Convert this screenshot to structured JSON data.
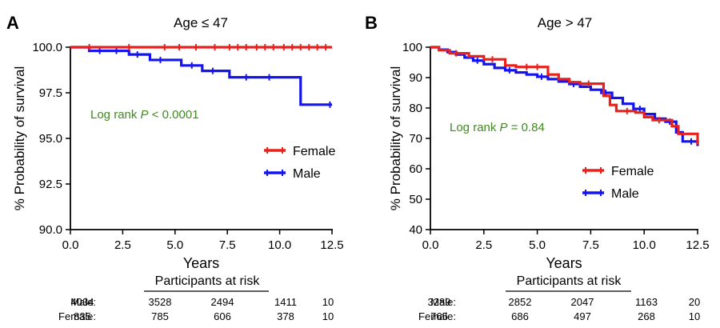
{
  "chart_data": [
    {
      "type": "line",
      "panel_label": "A",
      "title": "Age ≤ 47",
      "xlabel": "Years",
      "ylabel": "% Probability of survival",
      "xlim": [
        0,
        12.5
      ],
      "ylim": [
        90,
        100
      ],
      "xticks": [
        0,
        2.5,
        5,
        7.5,
        10,
        12.5
      ],
      "xtick_labels": [
        "0.0",
        "2.5",
        "5.0",
        "7.5",
        "10.0",
        "12.5"
      ],
      "yticks": [
        90,
        92.5,
        95,
        97.5,
        100
      ],
      "ytick_labels": [
        "90.0",
        "92.5",
        "95.0",
        "97.5",
        "100.0"
      ],
      "annotation": {
        "prefix": "Log rank ",
        "italic": "P",
        "suffix": " < 0.0001"
      },
      "legend_position": "middle-right",
      "series": [
        {
          "name": "Female",
          "color": "#e8211d",
          "x": [
            0,
            0.9,
            12.5
          ],
          "y": [
            100,
            100,
            100
          ],
          "censor_x": [
            0.9,
            2.8,
            4.5,
            5.2,
            6.0,
            6.9,
            7.6,
            8.0,
            8.4,
            8.9,
            9.3,
            9.7,
            10.2,
            10.6,
            11.0,
            11.4,
            11.8,
            12.2
          ]
        },
        {
          "name": "Male",
          "color": "#1414f0",
          "x": [
            0,
            0.9,
            2.8,
            3.8,
            5.3,
            6.3,
            7.6,
            11.0,
            12.5
          ],
          "y": [
            100,
            99.8,
            99.6,
            99.3,
            99.0,
            98.7,
            98.35,
            96.85,
            96.85
          ],
          "censor_x": [
            1.4,
            2.2,
            3.2,
            4.3,
            5.8,
            6.8,
            8.4,
            9.5,
            12.4
          ]
        }
      ],
      "risk_table": {
        "header": "Participants at risk",
        "rows": [
          {
            "label": "Male:",
            "values": [
              "4034",
              "3528",
              "2494",
              "1411",
              "10"
            ]
          },
          {
            "label": "Female:",
            "values": [
              "835",
              "785",
              "606",
              "378",
              "10"
            ]
          }
        ],
        "x": [
          0,
          3,
          6,
          9,
          12.5
        ]
      }
    },
    {
      "type": "line",
      "panel_label": "B",
      "title": "Age > 47",
      "xlabel": "Years",
      "ylabel": "% Probability of survival",
      "xlim": [
        0,
        12.5
      ],
      "ylim": [
        40,
        100
      ],
      "xticks": [
        0,
        2.5,
        5,
        7.5,
        10,
        12.5
      ],
      "xtick_labels": [
        "0.0",
        "2.5",
        "5.0",
        "7.5",
        "10.0",
        "12.5"
      ],
      "yticks": [
        40,
        50,
        60,
        70,
        80,
        90,
        100
      ],
      "ytick_labels": [
        "40",
        "50",
        "60",
        "70",
        "80",
        "90",
        "100"
      ],
      "annotation": {
        "prefix": "Log rank ",
        "italic": "P",
        "suffix": " = 0.84"
      },
      "legend_position": "lower-right",
      "series": [
        {
          "name": "Female",
          "color": "#e8211d",
          "x": [
            0,
            0.4,
            0.9,
            1.8,
            2.5,
            3.5,
            4.0,
            5.5,
            6.0,
            6.5,
            7.0,
            8.1,
            8.4,
            8.7,
            9.6,
            10.0,
            10.4,
            11.3,
            11.6,
            11.9,
            12.5
          ],
          "y": [
            100,
            99,
            98,
            97,
            96,
            94,
            93.5,
            91,
            89.5,
            88.5,
            88,
            84,
            81,
            79,
            78.5,
            77,
            76,
            74,
            71.5,
            71.5,
            68
          ],
          "censor_x": [
            1.2,
            2.9,
            4.5,
            5.0,
            7.4,
            9.2,
            10.7
          ]
        },
        {
          "name": "Male",
          "color": "#1414f0",
          "x": [
            0,
            0.4,
            0.8,
            1.2,
            1.6,
            2.0,
            2.5,
            3.0,
            3.5,
            4.0,
            4.5,
            5.0,
            5.5,
            6.0,
            6.5,
            7.0,
            7.5,
            8.0,
            8.5,
            9.0,
            9.5,
            10.0,
            10.5,
            11.0,
            11.5,
            11.8,
            12.5
          ],
          "y": [
            100,
            99.2,
            98.4,
            97.6,
            96.6,
            95.6,
            94.4,
            93.2,
            92.4,
            91.7,
            91.0,
            90.3,
            89.5,
            88.7,
            87.9,
            87.0,
            86.0,
            85.0,
            83.3,
            81.4,
            79.7,
            78.0,
            76.5,
            75.5,
            72,
            69,
            67.5
          ],
          "censor_x": [
            2.2,
            3.7,
            5.2,
            6.7,
            8.2,
            9.8,
            11.2,
            12.2
          ]
        }
      ],
      "risk_table": {
        "header": "Participants at risk",
        "rows": [
          {
            "label": "Male:",
            "values": [
              "3289",
              "2852",
              "2047",
              "1163",
              "20"
            ]
          },
          {
            "label": "Female:",
            "values": [
              "765",
              "686",
              "497",
              "268",
              "10"
            ]
          }
        ],
        "x": [
          0,
          3,
          6,
          9,
          12.5
        ]
      }
    }
  ]
}
